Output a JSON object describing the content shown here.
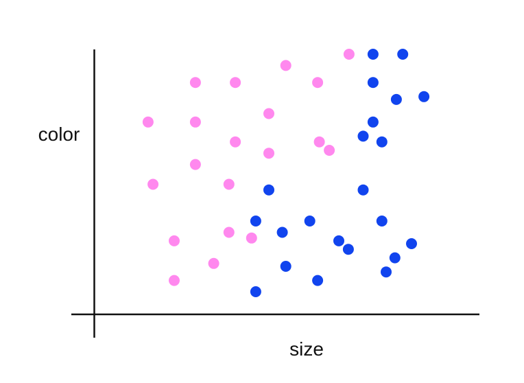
{
  "chart_data": {
    "type": "scatter",
    "title": "",
    "xlabel": "size",
    "ylabel": "color",
    "xlim": [
      0,
      100
    ],
    "ylim": [
      0,
      100
    ],
    "grid": false,
    "legend": "none",
    "tick_labels": false,
    "colors": {
      "pink": "#ff88ee",
      "blue": "#1144ee",
      "axis": "#111111"
    },
    "series": [
      {
        "color": "#ff88ee",
        "points": [
          [
            12.4,
            68
          ],
          [
            25.8,
            82
          ],
          [
            37.1,
            82
          ],
          [
            25.8,
            68
          ],
          [
            46.6,
            71
          ],
          [
            51.4,
            88
          ],
          [
            60.4,
            82
          ],
          [
            69.3,
            92
          ],
          [
            37.1,
            61
          ],
          [
            46.6,
            57
          ],
          [
            60.9,
            61
          ],
          [
            63.7,
            58
          ],
          [
            25.8,
            53
          ],
          [
            13.8,
            46
          ],
          [
            35.3,
            46
          ],
          [
            19.8,
            26
          ],
          [
            35.3,
            29
          ],
          [
            41.7,
            27
          ],
          [
            31,
            18
          ],
          [
            19.8,
            12
          ]
        ]
      },
      {
        "color": "#1144ee",
        "points": [
          [
            76.1,
            92
          ],
          [
            84.5,
            92
          ],
          [
            76.1,
            82
          ],
          [
            82.7,
            76
          ],
          [
            90.5,
            77
          ],
          [
            76.1,
            68
          ],
          [
            73.3,
            63
          ],
          [
            78.6,
            61
          ],
          [
            46.6,
            44
          ],
          [
            73.3,
            44
          ],
          [
            42.9,
            33
          ],
          [
            50.4,
            29
          ],
          [
            58.2,
            33
          ],
          [
            78.6,
            33
          ],
          [
            66.4,
            26
          ],
          [
            69.1,
            23
          ],
          [
            87,
            25
          ],
          [
            51.4,
            17
          ],
          [
            82.3,
            20
          ],
          [
            79.8,
            15
          ],
          [
            60.4,
            12
          ],
          [
            42.9,
            8
          ]
        ]
      }
    ]
  }
}
